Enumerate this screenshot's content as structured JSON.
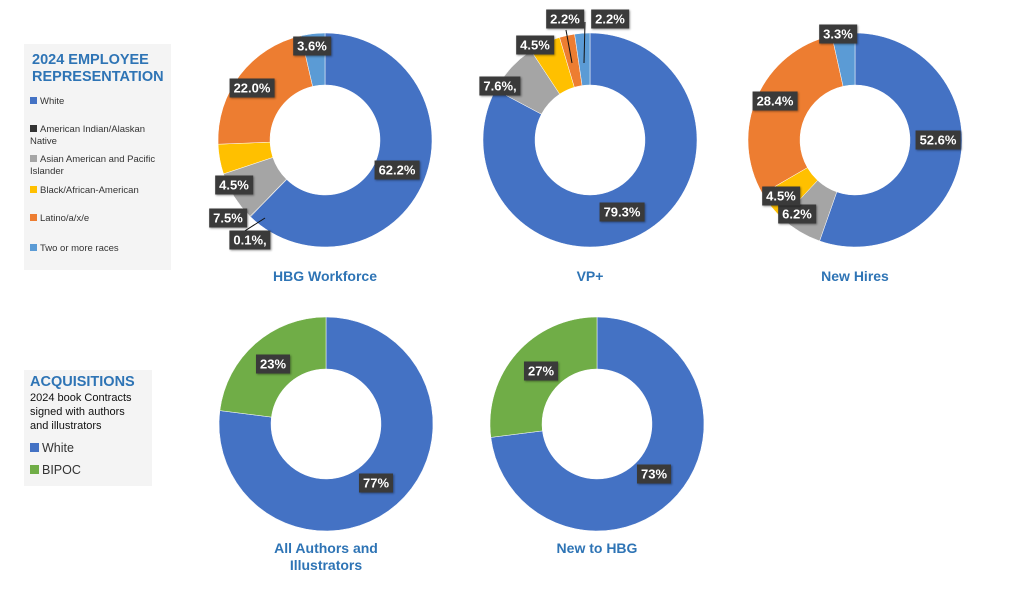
{
  "colors": {
    "White": "#4472c4",
    "American Indian/Alaskan Native": "#333333",
    "Asian American and Pacific Islander": "#a5a5a5",
    "Black/African-American": "#ffc000",
    "Latino/a/x/e": "#ed7d31",
    "Two or more races": "#5b9bd5",
    "BIPOC": "#70ad47"
  },
  "employee_legend": {
    "title_line1": "2024 EMPLOYEE",
    "title_line2": "REPRESENTATION",
    "items": [
      "White",
      "American Indian/Alaskan Native",
      "Asian American and Pacific Islander",
      "Black/African-American",
      "Latino/a/x/e",
      "Two or more races"
    ]
  },
  "acq_legend": {
    "title": "ACQUISITIONS",
    "subtitle": "2024 book Contracts signed with authors and illustrators",
    "items": [
      "White",
      "BIPOC"
    ]
  },
  "chart_data": [
    {
      "type": "pie",
      "title": "HBG Workforce",
      "categories": [
        "White",
        "American Indian/Alaskan Native",
        "Asian American and Pacific Islander",
        "Black/African-American",
        "Latino/a/x/e",
        "Two or more races"
      ],
      "values": [
        62.2,
        0.1,
        7.5,
        4.5,
        22.0,
        3.6
      ],
      "labels": [
        "62.2%",
        "0.1%,",
        "7.5%",
        "4.5%",
        "22.0%",
        "3.6%"
      ]
    },
    {
      "type": "pie",
      "title": "VP+",
      "categories": [
        "White",
        "Asian American and Pacific Islander",
        "Black/African-American",
        "Latino/a/x/e",
        "Two or more races"
      ],
      "values": [
        79.3,
        7.6,
        4.5,
        2.2,
        2.2
      ],
      "labels": [
        "79.3%",
        "7.6%,",
        "4.5%",
        "2.2%",
        "2.2%"
      ]
    },
    {
      "type": "pie",
      "title": "New Hires",
      "categories": [
        "White",
        "Asian American and Pacific Islander",
        "Black/African-American",
        "Latino/a/x/e",
        "Two or more races"
      ],
      "values": [
        52.6,
        6.2,
        4.5,
        28.4,
        3.3
      ],
      "labels": [
        "52.6%",
        "6.2%",
        "4.5%",
        "28.4%",
        "3.3%"
      ]
    },
    {
      "type": "pie",
      "title": "All Authors and Illustrators",
      "categories": [
        "White",
        "BIPOC"
      ],
      "values": [
        77,
        23
      ],
      "labels": [
        "77%",
        "23%"
      ]
    },
    {
      "type": "pie",
      "title": "New to HBG",
      "categories": [
        "White",
        "BIPOC"
      ],
      "values": [
        73,
        27
      ],
      "labels": [
        "73%",
        "27%"
      ]
    }
  ]
}
